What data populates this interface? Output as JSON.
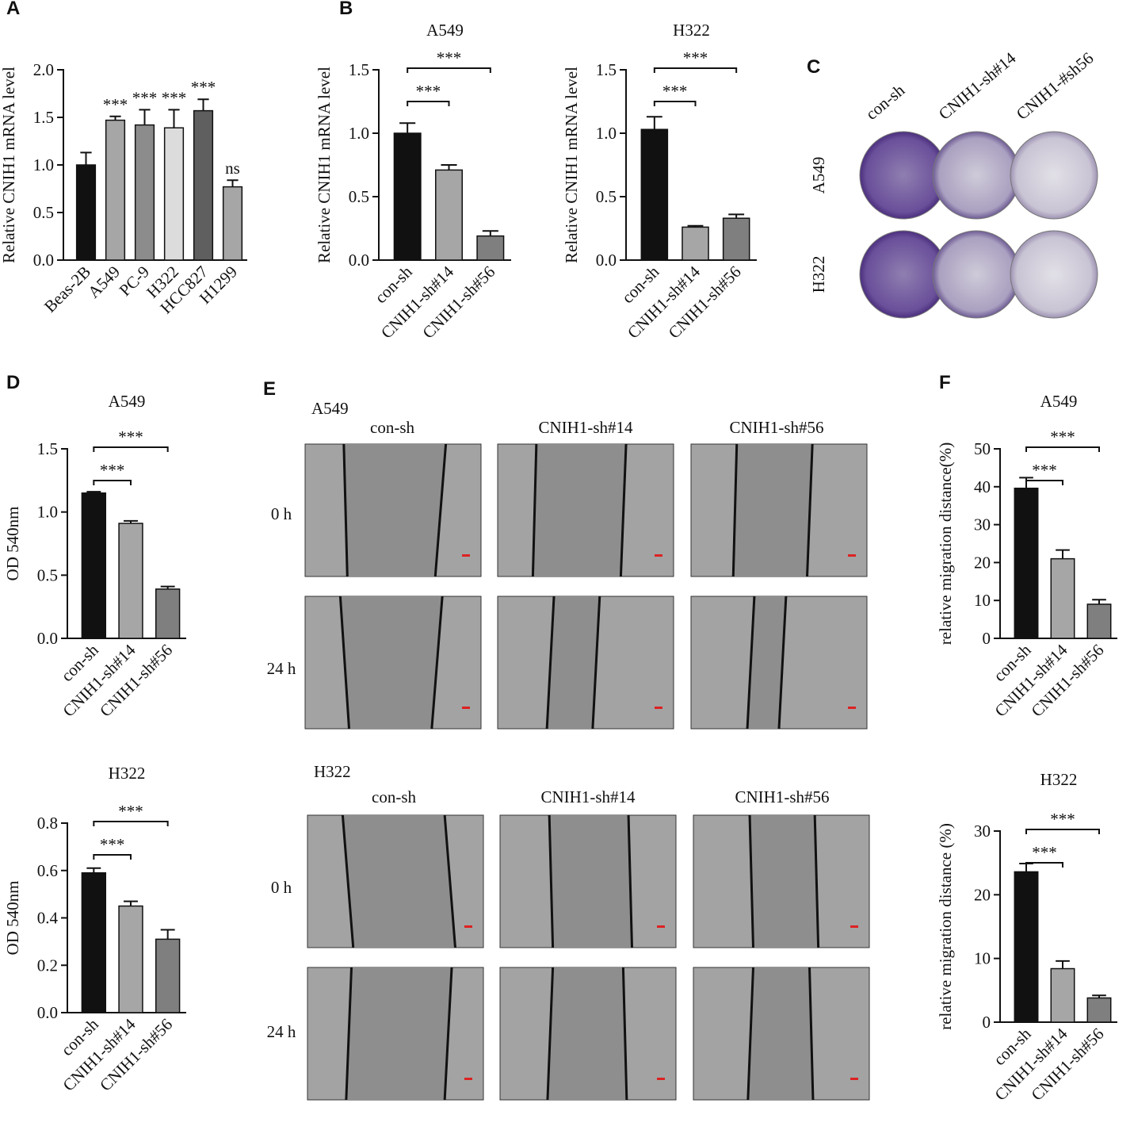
{
  "chart_data": [
    {
      "type": "bar",
      "panel": "A",
      "ylabel": "Relative CNIH1 mRNA level",
      "categories": [
        "Beas-2B",
        "A549",
        "PC-9",
        "H322",
        "HCC827",
        "H1299"
      ],
      "values": [
        1.0,
        1.47,
        1.42,
        1.39,
        1.57,
        0.77
      ],
      "errors": [
        0.13,
        0.04,
        0.16,
        0.19,
        0.12,
        0.07
      ],
      "colors": [
        "#111111",
        "#a6a6a6",
        "#8c8c8c",
        "#dcdcdc",
        "#5f5f5f",
        "#a6a6a6"
      ],
      "annotations": [
        null,
        "***",
        "***",
        "***",
        "***",
        "ns"
      ],
      "ylim": [
        0,
        2
      ],
      "yticks": [
        {
          "value": 0,
          "label": "0.0"
        },
        {
          "value": 0.5,
          "label": "0.5"
        },
        {
          "value": 1,
          "label": "1.0"
        },
        {
          "value": 1.5,
          "label": "1.5"
        },
        {
          "value": 2,
          "label": "2.0"
        }
      ]
    },
    {
      "type": "bar",
      "panel": "B",
      "title": "A549",
      "ylabel": "Relative CNIH1 mRNA level",
      "categories": [
        "con-sh",
        "CNIH1-sh#14",
        "CNIH1-sh#56"
      ],
      "values": [
        1.0,
        0.71,
        0.19
      ],
      "errors": [
        0.08,
        0.04,
        0.04
      ],
      "colors": [
        "#111111",
        "#a6a6a6",
        "#7f7f7f"
      ],
      "comparisons": [
        {
          "label": "***",
          "categories": [
            "con-sh",
            "CNIH1-sh#14"
          ]
        },
        {
          "label": "***",
          "categories": [
            "con-sh",
            "CNIH1-sh#56"
          ]
        }
      ],
      "ylim": [
        0,
        1.5
      ],
      "yticks": [
        {
          "value": 0,
          "label": "0.0"
        },
        {
          "value": 0.5,
          "label": "0.5"
        },
        {
          "value": 1,
          "label": "1.0"
        },
        {
          "value": 1.5,
          "label": "1.5"
        }
      ]
    },
    {
      "type": "bar",
      "title": "H322",
      "ylabel": "Relative CNIH1 mRNA level",
      "categories": [
        "con-sh",
        "CNIH1-sh#14",
        "CNIH1-sh#56"
      ],
      "values": [
        1.03,
        0.26,
        0.33
      ],
      "errors": [
        0.1,
        0.01,
        0.03
      ],
      "colors": [
        "#111111",
        "#a6a6a6",
        "#7f7f7f"
      ],
      "comparisons": [
        {
          "label": "***",
          "categories": [
            "con-sh",
            "CNIH1-sh#14"
          ]
        },
        {
          "label": "***",
          "categories": [
            "con-sh",
            "CNIH1-sh#56"
          ]
        }
      ],
      "ylim": [
        0,
        1.5
      ],
      "yticks": [
        {
          "value": 0,
          "label": "0.0"
        },
        {
          "value": 0.5,
          "label": "0.5"
        },
        {
          "value": 1,
          "label": "1.0"
        },
        {
          "value": 1.5,
          "label": "1.5"
        }
      ]
    },
    {
      "type": "bar",
      "panel": "D",
      "title": "A549",
      "ylabel": "OD 540nm",
      "categories": [
        "con-sh",
        "CNIH1-sh#14",
        "CNIH1-sh#56"
      ],
      "values": [
        1.15,
        0.91,
        0.39
      ],
      "errors": [
        0.01,
        0.02,
        0.02
      ],
      "colors": [
        "#111111",
        "#a6a6a6",
        "#7f7f7f"
      ],
      "comparisons": [
        {
          "label": "***",
          "categories": [
            "con-sh",
            "CNIH1-sh#14"
          ]
        },
        {
          "label": "***",
          "categories": [
            "con-sh",
            "CNIH1-sh#56"
          ]
        }
      ],
      "ylim": [
        0,
        1.5
      ],
      "yticks": [
        {
          "value": 0,
          "label": "0.0"
        },
        {
          "value": 0.5,
          "label": "0.5"
        },
        {
          "value": 1,
          "label": "1.0"
        },
        {
          "value": 1.5,
          "label": "1.5"
        }
      ]
    },
    {
      "type": "bar",
      "title": "H322",
      "ylabel": "OD 540nm",
      "categories": [
        "con-sh",
        "CNIH1-sh#14",
        "CNIH1-sh#56"
      ],
      "values": [
        0.59,
        0.45,
        0.31
      ],
      "errors": [
        0.02,
        0.02,
        0.04
      ],
      "colors": [
        "#111111",
        "#a6a6a6",
        "#7f7f7f"
      ],
      "comparisons": [
        {
          "label": "***",
          "categories": [
            "con-sh",
            "CNIH1-sh#14"
          ]
        },
        {
          "label": "***",
          "categories": [
            "con-sh",
            "CNIH1-sh#56"
          ]
        }
      ],
      "ylim": [
        0,
        0.8
      ],
      "yticks": [
        {
          "value": 0,
          "label": "0.0"
        },
        {
          "value": 0.2,
          "label": "0.2"
        },
        {
          "value": 0.4,
          "label": "0.4"
        },
        {
          "value": 0.6,
          "label": "0.6"
        },
        {
          "value": 0.8,
          "label": "0.8"
        }
      ]
    },
    {
      "type": "bar",
      "panel": "F",
      "title": "A549",
      "ylabel": "relative migration distance(%)",
      "categories": [
        "con-sh",
        "CNIH1-sh#14",
        "CNIH1-sh#56"
      ],
      "values": [
        39.6,
        21,
        9
      ],
      "errors": [
        2.8,
        2.3,
        1.2
      ],
      "colors": [
        "#111111",
        "#a6a6a6",
        "#7f7f7f"
      ],
      "comparisons": [
        {
          "label": "***",
          "categories": [
            "con-sh",
            "CNIH1-sh#14"
          ]
        },
        {
          "label": "***",
          "categories": [
            "con-sh",
            "CNIH1-sh#56"
          ]
        }
      ],
      "ylim": [
        0,
        50
      ],
      "yticks": [
        0,
        10,
        20,
        30,
        40,
        50
      ]
    },
    {
      "type": "bar",
      "title": "H322",
      "ylabel": "relative migration distance (%)",
      "categories": [
        "con-sh",
        "CNIH1-sh#14",
        "CNIH1-sh#56"
      ],
      "values": [
        23.6,
        8.4,
        3.8
      ],
      "errors": [
        1.3,
        1.2,
        0.4
      ],
      "colors": [
        "#111111",
        "#a6a6a6",
        "#7f7f7f"
      ],
      "comparisons": [
        {
          "label": "***",
          "categories": [
            "con-sh",
            "CNIH1-sh#14"
          ]
        },
        {
          "label": "***",
          "categories": [
            "con-sh",
            "CNIH1-sh#56"
          ]
        }
      ],
      "ylim": [
        0,
        30
      ],
      "yticks": [
        0,
        10,
        20,
        30
      ]
    }
  ],
  "panels": {
    "C": {
      "label": "C",
      "columns": [
        "con-sh",
        "CNIH1-sh#14",
        "CNIH1-#sh56"
      ],
      "rows": [
        "A549",
        "H322"
      ]
    },
    "E": {
      "label": "E",
      "groups": [
        {
          "name": "A549",
          "columns": [
            "con-sh",
            "CNIH1-sh#14",
            "CNIH1-sh#56"
          ],
          "rows": [
            "0 h",
            "24 h"
          ]
        },
        {
          "name": "H322",
          "columns": [
            "con-sh",
            "CNIH1-sh#14",
            "CNIH1-sh#56"
          ],
          "rows": [
            "0 h",
            "24 h"
          ]
        }
      ]
    }
  }
}
